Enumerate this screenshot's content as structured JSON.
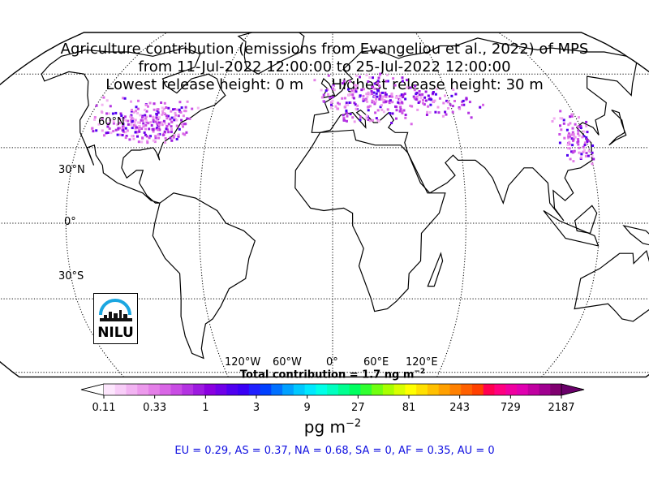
{
  "title": {
    "line1": "Agriculture contribution (emissions from Evangeliou et al., 2022) of MPS",
    "line2": "from 11-Jul-2022 12:00:00 to 25-Jul-2022 12:00:00",
    "line3": "Lowest release height: 0 m      Highest release height: 30 m"
  },
  "map": {
    "projection": "Robinson",
    "lat_labels": [
      "60°N",
      "30°N",
      "0°",
      "30°S"
    ],
    "lon_labels": [
      "120°W",
      "60°W",
      "0°",
      "60°E",
      "120°E"
    ],
    "gridlines": true,
    "hotspot_regions": [
      "North America",
      "Europe",
      "East Asia"
    ]
  },
  "total_contribution": "Total contribution = 1.7 ng m",
  "total_contribution_exp": "−2",
  "colorbar": {
    "tick_labels": [
      "0.11",
      "0.33",
      "1",
      "3",
      "9",
      "27",
      "81",
      "243",
      "729",
      "2187"
    ],
    "unit": "pg m",
    "unit_exp": "−2",
    "colors": [
      "#fde6fd",
      "#f8cdf8",
      "#f2b3f2",
      "#ec99ec",
      "#e47fe8",
      "#d966e6",
      "#c94ce4",
      "#b433e2",
      "#9d1ae0",
      "#8a00e0",
      "#7000e8",
      "#5000f0",
      "#3a00f5",
      "#2020ff",
      "#0040ff",
      "#0070ff",
      "#00a0ff",
      "#00c8ff",
      "#00e8ff",
      "#00ffe8",
      "#00ffc0",
      "#00ff90",
      "#00ff60",
      "#30ff30",
      "#70ff10",
      "#a8ff00",
      "#d8ff00",
      "#ffff00",
      "#ffe000",
      "#ffc000",
      "#ffa000",
      "#ff8000",
      "#ff6000",
      "#ff4000",
      "#ff0050",
      "#ff0080",
      "#f000a0",
      "#e000b0",
      "#c000a0",
      "#a00090",
      "#800070"
    ]
  },
  "regions_text": "EU = 0.29,  AS = 0.37,  NA = 0.68,  SA = 0,  AF = 0.35,  AU = 0",
  "logo": {
    "text": "NILU",
    "accent": "#1aa6e0"
  }
}
